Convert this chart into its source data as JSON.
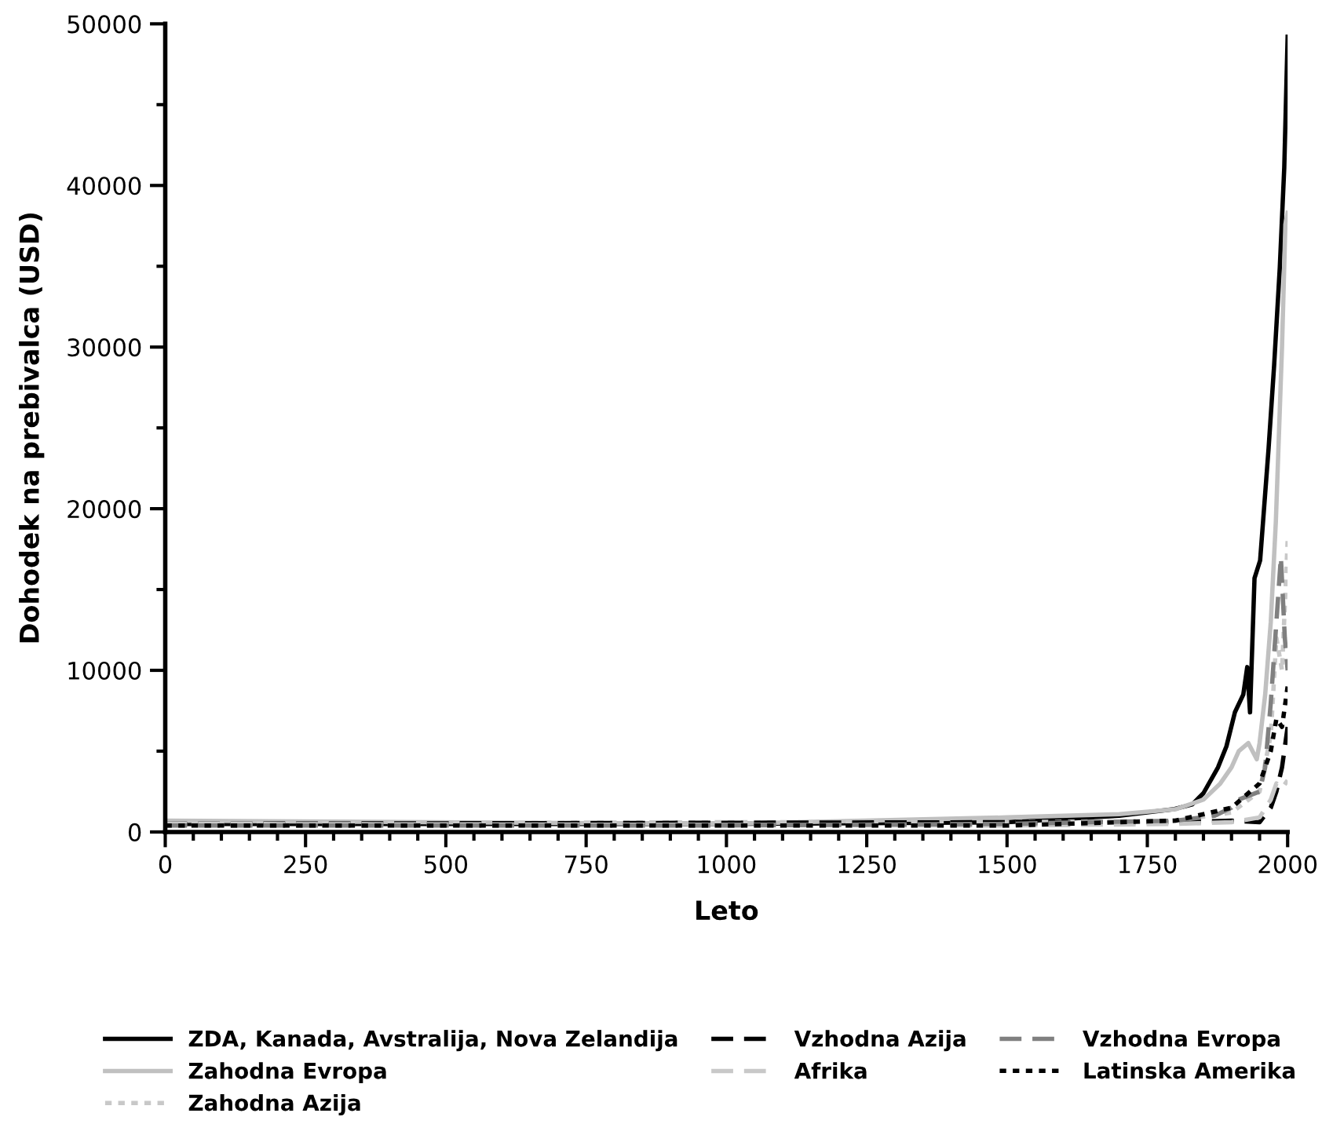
{
  "chart_data": {
    "type": "line",
    "xlabel": "Leto",
    "ylabel": "Dohodek na prebivalca (USD)",
    "xlim": [
      0,
      2000
    ],
    "xticks": [
      0,
      250,
      500,
      750,
      1000,
      1250,
      1500,
      1750,
      2000
    ],
    "ylim": [
      0,
      50000
    ],
    "yticks": [
      0,
      10000,
      20000,
      30000,
      40000,
      50000
    ],
    "grid": false,
    "legend": "bottom",
    "marker": "none",
    "series": [
      {
        "name": "ZDA, Kanada, Avstralija, Nova Zelandija",
        "color": "#000000",
        "line_style": "solid",
        "x": [
          0,
          1000,
          1500,
          1700,
          1796,
          1830,
          1850,
          1876,
          1891,
          1906,
          1921,
          1928,
          1933,
          1941,
          1951,
          1966,
          1976,
          1986,
          1994,
          2000
        ],
        "values": [
          500,
          500,
          600,
          1000,
          1400,
          1700,
          2400,
          4000,
          5300,
          7400,
          8500,
          10200,
          7400,
          15700,
          16800,
          23700,
          28900,
          34900,
          41100,
          49200
        ]
      },
      {
        "name": "Zahodna Evropa",
        "color": "#c0c0c0",
        "line_style": "solid",
        "x": [
          0,
          1000,
          1500,
          1700,
          1800,
          1850,
          1880,
          1900,
          1913,
          1930,
          1945,
          1950,
          1960,
          1970,
          1979,
          1990,
          1996,
          2000
        ],
        "values": [
          700,
          500,
          900,
          1100,
          1400,
          2000,
          3000,
          4000,
          5000,
          5500,
          4500,
          5500,
          8500,
          13000,
          19200,
          30000,
          37600,
          38300
        ]
      },
      {
        "name": "Zahodna Azija",
        "color": "#c8c8c8",
        "line_style": "dotted",
        "x": [
          0,
          1000,
          1500,
          1800,
          1900,
          1950,
          1970,
          1980,
          1990,
          2000
        ],
        "values": [
          500,
          600,
          600,
          700,
          1200,
          2500,
          6000,
          12000,
          10000,
          18000
        ]
      },
      {
        "name": "Vzhodna Azija",
        "color": "#000000",
        "line_style": "dashed",
        "x": [
          0,
          1500,
          1800,
          1900,
          1950,
          1970,
          1980,
          1990,
          2000
        ],
        "values": [
          500,
          600,
          600,
          700,
          600,
          1500,
          2500,
          4000,
          6500
        ]
      },
      {
        "name": "Afrika",
        "color": "#c8c8c8",
        "line_style": "dashed",
        "x": [
          0,
          1500,
          1800,
          1900,
          1950,
          1970,
          1980,
          1990,
          2000
        ],
        "values": [
          500,
          400,
          500,
          600,
          900,
          2000,
          3000,
          2700,
          3200
        ]
      },
      {
        "name": "Vzhodna Evropa",
        "color": "#808080",
        "line_style": "dashed",
        "x": [
          0,
          1000,
          1500,
          1800,
          1870,
          1900,
          1913,
          1950,
          1960,
          1970,
          1980,
          1988,
          1995,
          2000
        ],
        "values": [
          400,
          400,
          500,
          700,
          1000,
          1500,
          2000,
          2500,
          4000,
          8000,
          13000,
          17000,
          12000,
          10000
        ]
      },
      {
        "name": "Latinska Amerika",
        "color": "#000000",
        "line_style": "dotted",
        "x": [
          0,
          1500,
          1800,
          1900,
          1950,
          1970,
          1980,
          1990,
          2000
        ],
        "values": [
          400,
          400,
          700,
          1500,
          3000,
          5000,
          7000,
          6500,
          9000
        ]
      }
    ]
  }
}
